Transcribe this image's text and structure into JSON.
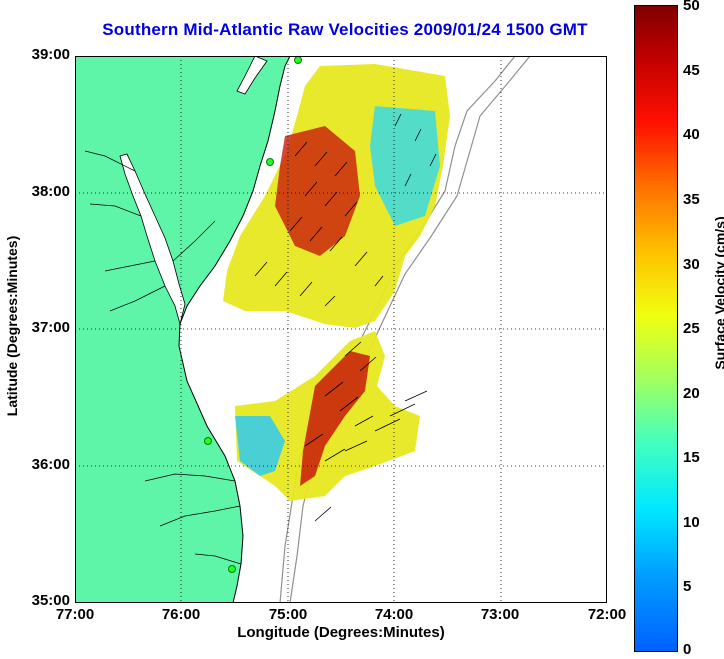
{
  "title": "Southern Mid-Atlantic Raw Velocities 2009/01/24 1500 GMT",
  "xlabel": "Longitude (Degrees:Minutes)",
  "ylabel": "Latitude (Degrees:Minutes)",
  "colorbar_label": "Surface Velocity (cm/s)",
  "x_ticks": [
    "77:00",
    "76:00",
    "75:00",
    "74:00",
    "73:00",
    "72:00"
  ],
  "y_ticks": [
    "39:00",
    "38:00",
    "37:00",
    "36:00",
    "35:00"
  ],
  "colorbar_ticks": [
    "50",
    "45",
    "40",
    "35",
    "30",
    "25",
    "20",
    "15",
    "10",
    "5",
    "0"
  ],
  "lon_range": [
    -77,
    -72
  ],
  "lat_range": [
    35,
    39
  ],
  "colorbar_range": [
    0,
    50
  ],
  "colors": {
    "land": "#5ef5a8",
    "title": "#0000e0",
    "coast": "#000000",
    "bathymetry": "#909090"
  },
  "grid": "dotted"
}
